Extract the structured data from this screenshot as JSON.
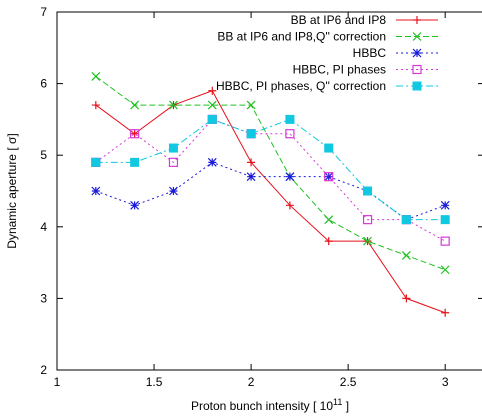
{
  "chart_data": {
    "type": "line",
    "xlabel": "Proton bunch intensity [ 10",
    "xlabel_sup": "11",
    "xlabel_end": " ]",
    "ylabel": "Dynamic aperture [ σ]",
    "xlim": [
      1,
      3.2
    ],
    "ylim": [
      2,
      7
    ],
    "xticks": [
      1,
      1.5,
      2,
      2.5,
      3
    ],
    "xtick_labels": [
      "1",
      "1.5",
      "2",
      "2.5",
      "3"
    ],
    "yticks": [
      2,
      3,
      4,
      5,
      6,
      7
    ],
    "ytick_labels": [
      "2",
      "3",
      "4",
      "5",
      "6",
      "7"
    ],
    "grid": false,
    "legend_position": "top-right",
    "series": [
      {
        "name": "BB at IP6 and IP8",
        "color": "#e8101a",
        "dash": "solid",
        "marker": "plus",
        "x": [
          1.2,
          1.4,
          1.6,
          1.8,
          2.0,
          2.2,
          2.4,
          2.6,
          2.8,
          3.0
        ],
        "y": [
          5.7,
          5.3,
          5.7,
          5.9,
          4.9,
          4.3,
          3.8,
          3.8,
          3.0,
          2.8
        ]
      },
      {
        "name": "BB at IP6 and IP8,Q'' correction",
        "color": "#20c020",
        "dash": "dashed",
        "marker": "cross",
        "x": [
          1.2,
          1.4,
          1.6,
          1.8,
          2.0,
          2.2,
          2.4,
          2.6,
          2.8,
          3.0
        ],
        "y": [
          6.1,
          5.7,
          5.7,
          5.7,
          5.7,
          4.7,
          4.1,
          3.8,
          3.6,
          3.4
        ]
      },
      {
        "name": "HBBC",
        "color": "#1a1adc",
        "dash": "dotted",
        "marker": "star",
        "x": [
          1.2,
          1.4,
          1.6,
          1.8,
          2.0,
          2.2,
          2.4,
          2.6,
          2.8,
          3.0
        ],
        "y": [
          4.5,
          4.3,
          4.5,
          4.9,
          4.7,
          4.7,
          4.7,
          4.5,
          4.1,
          4.3
        ]
      },
      {
        "name": "HBBC, PI phases",
        "color": "#d838d8",
        "dash": "dotted",
        "marker": "open-square",
        "x": [
          1.2,
          1.4,
          1.6,
          1.8,
          2.0,
          2.2,
          2.4,
          2.6,
          2.8,
          3.0
        ],
        "y": [
          4.9,
          5.3,
          4.9,
          5.5,
          5.3,
          5.3,
          4.7,
          4.1,
          4.1,
          3.8
        ]
      },
      {
        "name": "HBBC, PI phases, Q'' correction",
        "color": "#10c8e0",
        "dash": "dashdot",
        "marker": "filled-square",
        "x": [
          1.2,
          1.4,
          1.6,
          1.8,
          2.0,
          2.2,
          2.4,
          2.6,
          2.8,
          3.0
        ],
        "y": [
          4.9,
          4.9,
          5.1,
          5.5,
          5.3,
          5.5,
          5.1,
          4.5,
          4.1,
          4.1
        ]
      }
    ]
  }
}
